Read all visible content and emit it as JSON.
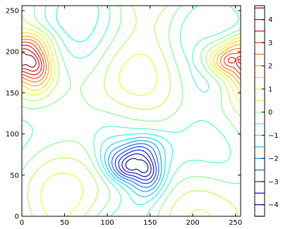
{
  "chart_data": {
    "type": "contour",
    "title": "",
    "xlabel": "",
    "ylabel": "",
    "xlim": [
      0,
      256
    ],
    "ylim": [
      0,
      256
    ],
    "x_ticks": [
      0,
      50,
      100,
      150,
      200,
      250
    ],
    "y_ticks": [
      0,
      50,
      100,
      150,
      200,
      250
    ],
    "grid": false,
    "colormap": "jet",
    "vortices": [
      {
        "x": 135,
        "y": 62,
        "value": -4.5,
        "note": "strong negative vortex"
      },
      {
        "x": 5,
        "y": 190,
        "value": 4.5,
        "note": "positive vortex at left edge"
      },
      {
        "x": 250,
        "y": 190,
        "value": 4.5,
        "note": "positive vortex at right edge"
      }
    ],
    "colorbar": {
      "range": [
        -4.5,
        4.6
      ],
      "tick_values": [
        4,
        3,
        2,
        1,
        0,
        -1,
        -2,
        -3,
        -4
      ],
      "tick_labels": [
        "4",
        "3",
        "2",
        "1",
        "0",
        "−1",
        "−2",
        "−3",
        "−4"
      ],
      "level_step": 0.5,
      "colors": [
        "#00007f",
        "#0000c8",
        "#0010ff",
        "#0060ff",
        "#00b0ff",
        "#10f0e0",
        "#50ffa8",
        "#90ff70",
        "#d0ff30",
        "#ffe000",
        "#ff9800",
        "#ff4000",
        "#e00000",
        "#7f0000"
      ]
    }
  }
}
